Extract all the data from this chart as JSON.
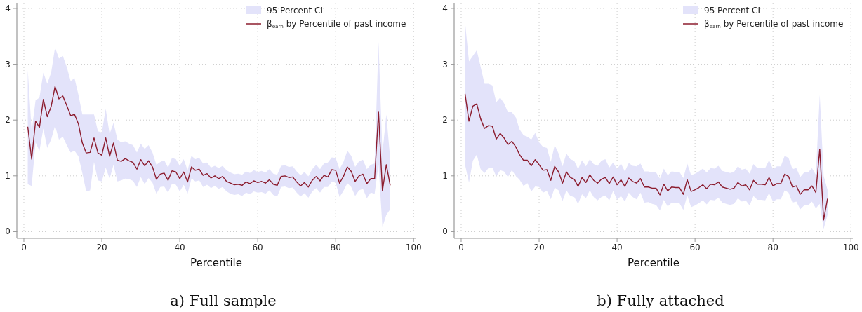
{
  "chart_data": [
    {
      "type": "line",
      "title": "a) Full sample",
      "xlabel": "Percentile",
      "annotations": [
        "95 Percent CI"
      ],
      "legend": "top right",
      "grid": true,
      "line_style": "solid",
      "xlim": [
        -1.8,
        100.5
      ],
      "ylim": [
        -0.12,
        4.1
      ],
      "xticks": [
        0,
        20,
        40,
        60,
        80,
        100
      ],
      "yticks": [
        0,
        1,
        2,
        3,
        4
      ],
      "x": [
        1,
        2,
        3,
        4,
        5,
        6,
        7,
        8,
        9,
        10,
        11,
        12,
        13,
        14,
        15,
        16,
        17,
        18,
        19,
        20,
        21,
        22,
        23,
        24,
        25,
        26,
        27,
        28,
        29,
        30,
        31,
        32,
        33,
        34,
        35,
        36,
        37,
        38,
        39,
        40,
        41,
        42,
        43,
        44,
        45,
        46,
        47,
        48,
        49,
        50,
        51,
        52,
        53,
        54,
        55,
        56,
        57,
        58,
        59,
        60,
        61,
        62,
        63,
        64,
        65,
        66,
        67,
        68,
        69,
        70,
        71,
        72,
        73,
        74,
        75,
        76,
        77,
        78,
        79,
        80,
        81,
        82,
        83,
        84,
        85,
        86,
        87,
        88,
        89,
        90,
        91,
        92,
        93,
        94
      ],
      "series": [
        {
          "name": "β$_{earn}$ by Percentile of past income",
          "color": "#8c1c2e",
          "values": [
            1.88,
            1.3,
            1.98,
            1.87,
            2.37,
            2.06,
            2.24,
            2.6,
            2.38,
            2.43,
            2.26,
            2.08,
            2.1,
            1.93,
            1.59,
            1.41,
            1.42,
            1.68,
            1.41,
            1.37,
            1.68,
            1.35,
            1.59,
            1.28,
            1.26,
            1.31,
            1.27,
            1.24,
            1.12,
            1.29,
            1.18,
            1.27,
            1.16,
            0.94,
            1.03,
            1.05,
            0.92,
            1.09,
            1.07,
            0.95,
            1.07,
            0.89,
            1.16,
            1.1,
            1.12,
            1.01,
            1.04,
            0.96,
            1.0,
            0.95,
            0.99,
            0.9,
            0.87,
            0.84,
            0.85,
            0.83,
            0.89,
            0.86,
            0.91,
            0.88,
            0.9,
            0.87,
            0.93,
            0.85,
            0.83,
            0.99,
            1.0,
            0.97,
            0.98,
            0.89,
            0.82,
            0.88,
            0.8,
            0.92,
            0.99,
            0.91,
            1.01,
            0.98,
            1.11,
            1.1,
            0.87,
            0.99,
            1.16,
            1.08,
            0.9,
            1.0,
            1.03,
            0.86,
            0.95,
            0.95,
            2.14,
            0.73,
            1.2,
            0.83
          ],
          "upper": [
            2.9,
            1.8,
            2.35,
            2.4,
            2.85,
            2.65,
            2.85,
            3.3,
            3.1,
            3.15,
            2.95,
            2.7,
            2.75,
            2.45,
            2.1,
            2.1,
            2.1,
            2.1,
            1.8,
            1.78,
            2.2,
            1.75,
            1.95,
            1.65,
            1.6,
            1.62,
            1.58,
            1.55,
            1.42,
            1.58,
            1.48,
            1.55,
            1.42,
            1.2,
            1.25,
            1.28,
            1.15,
            1.32,
            1.3,
            1.18,
            1.3,
            1.1,
            1.36,
            1.3,
            1.32,
            1.22,
            1.24,
            1.15,
            1.18,
            1.14,
            1.18,
            1.1,
            1.06,
            1.03,
            1.04,
            1.02,
            1.08,
            1.05,
            1.1,
            1.07,
            1.09,
            1.06,
            1.12,
            1.04,
            1.02,
            1.18,
            1.19,
            1.16,
            1.17,
            1.08,
            1.01,
            1.07,
            0.99,
            1.12,
            1.2,
            1.12,
            1.22,
            1.24,
            1.33,
            1.32,
            1.12,
            1.25,
            1.45,
            1.36,
            1.16,
            1.26,
            1.29,
            1.12,
            1.2,
            1.22,
            3.4,
            1.4,
            2.1,
            1.3
          ],
          "lower": [
            0.85,
            0.82,
            1.6,
            1.45,
            1.85,
            1.5,
            1.65,
            1.9,
            1.65,
            1.7,
            1.55,
            1.42,
            1.45,
            1.35,
            1.05,
            0.72,
            0.74,
            1.25,
            0.92,
            0.9,
            1.15,
            0.95,
            1.2,
            0.9,
            0.92,
            0.95,
            0.94,
            0.91,
            0.8,
            0.98,
            0.85,
            0.96,
            0.88,
            0.68,
            0.8,
            0.81,
            0.7,
            0.86,
            0.84,
            0.72,
            0.84,
            0.68,
            0.95,
            0.9,
            0.92,
            0.8,
            0.84,
            0.78,
            0.82,
            0.77,
            0.8,
            0.72,
            0.68,
            0.66,
            0.67,
            0.64,
            0.7,
            0.67,
            0.72,
            0.7,
            0.71,
            0.68,
            0.74,
            0.66,
            0.63,
            0.8,
            0.81,
            0.78,
            0.79,
            0.7,
            0.63,
            0.69,
            0.61,
            0.72,
            0.78,
            0.7,
            0.8,
            0.8,
            0.89,
            0.88,
            0.62,
            0.73,
            0.87,
            0.8,
            0.64,
            0.74,
            0.77,
            0.6,
            0.7,
            0.68,
            1.2,
            0.08,
            0.3,
            0.4
          ]
        }
      ]
    },
    {
      "type": "line",
      "title": "b) Fully attached",
      "xlabel": "Percentile",
      "annotations": [
        "95 Percent CI"
      ],
      "legend": "top right",
      "grid": true,
      "line_style": "solid",
      "xlim": [
        -1.8,
        100.5
      ],
      "ylim": [
        -0.12,
        4.1
      ],
      "xticks": [
        0,
        20,
        40,
        60,
        80,
        100
      ],
      "yticks": [
        0,
        1,
        2,
        3,
        4
      ],
      "x": [
        1,
        2,
        3,
        4,
        5,
        6,
        7,
        8,
        9,
        10,
        11,
        12,
        13,
        14,
        15,
        16,
        17,
        18,
        19,
        20,
        21,
        22,
        23,
        24,
        25,
        26,
        27,
        28,
        29,
        30,
        31,
        32,
        33,
        34,
        35,
        36,
        37,
        38,
        39,
        40,
        41,
        42,
        43,
        44,
        45,
        46,
        47,
        48,
        49,
        50,
        51,
        52,
        53,
        54,
        55,
        56,
        57,
        58,
        59,
        60,
        61,
        62,
        63,
        64,
        65,
        66,
        67,
        68,
        69,
        70,
        71,
        72,
        73,
        74,
        75,
        76,
        77,
        78,
        79,
        80,
        81,
        82,
        83,
        84,
        85,
        86,
        87,
        88,
        89,
        90,
        91,
        92,
        93,
        94
      ],
      "series": [
        {
          "name": "β$_{earn}$ by Percentile of past income",
          "color": "#8c1c2e",
          "values": [
            2.47,
            1.98,
            2.25,
            2.29,
            2.02,
            1.85,
            1.9,
            1.89,
            1.66,
            1.76,
            1.68,
            1.56,
            1.62,
            1.52,
            1.38,
            1.28,
            1.28,
            1.18,
            1.29,
            1.2,
            1.1,
            1.11,
            0.92,
            1.17,
            1.07,
            0.87,
            1.07,
            0.97,
            0.94,
            0.81,
            0.97,
            0.88,
            1.02,
            0.92,
            0.87,
            0.94,
            0.97,
            0.86,
            0.98,
            0.84,
            0.93,
            0.81,
            0.96,
            0.9,
            0.87,
            0.95,
            0.8,
            0.8,
            0.78,
            0.78,
            0.66,
            0.85,
            0.73,
            0.8,
            0.79,
            0.79,
            0.67,
            0.93,
            0.72,
            0.75,
            0.79,
            0.84,
            0.77,
            0.85,
            0.84,
            0.89,
            0.8,
            0.78,
            0.76,
            0.78,
            0.88,
            0.82,
            0.84,
            0.75,
            0.92,
            0.85,
            0.85,
            0.84,
            0.97,
            0.82,
            0.86,
            0.86,
            1.03,
            0.99,
            0.8,
            0.82,
            0.67,
            0.75,
            0.75,
            0.82,
            0.7,
            1.48,
            0.21,
            0.59
          ],
          "upper": [
            3.75,
            3.05,
            3.15,
            3.25,
            2.95,
            2.65,
            2.65,
            2.62,
            2.32,
            2.4,
            2.3,
            2.14,
            2.14,
            2.05,
            1.83,
            1.73,
            1.7,
            1.65,
            1.77,
            1.6,
            1.52,
            1.5,
            1.25,
            1.55,
            1.4,
            1.17,
            1.4,
            1.3,
            1.27,
            1.12,
            1.28,
            1.17,
            1.3,
            1.21,
            1.18,
            1.27,
            1.3,
            1.15,
            1.24,
            1.12,
            1.22,
            1.08,
            1.23,
            1.18,
            1.17,
            1.22,
            1.08,
            1.08,
            1.06,
            1.06,
            0.95,
            1.13,
            1.01,
            1.08,
            1.07,
            1.07,
            0.96,
            1.22,
            1.01,
            1.04,
            1.08,
            1.13,
            1.06,
            1.14,
            1.13,
            1.18,
            1.09,
            1.07,
            1.05,
            1.07,
            1.17,
            1.11,
            1.13,
            1.04,
            1.21,
            1.14,
            1.15,
            1.14,
            1.28,
            1.12,
            1.17,
            1.17,
            1.36,
            1.32,
            1.12,
            1.14,
            0.98,
            1.06,
            1.06,
            1.14,
            1.02,
            2.45,
            1.0,
            0.75
          ],
          "lower": [
            1.2,
            0.88,
            1.27,
            1.38,
            1.12,
            1.05,
            1.14,
            1.15,
            0.99,
            1.1,
            1.08,
            0.98,
            1.1,
            1.0,
            0.93,
            0.82,
            0.87,
            0.72,
            0.81,
            0.8,
            0.7,
            0.73,
            0.58,
            0.79,
            0.74,
            0.55,
            0.74,
            0.64,
            0.62,
            0.5,
            0.67,
            0.6,
            0.74,
            0.62,
            0.56,
            0.62,
            0.65,
            0.56,
            0.73,
            0.57,
            0.64,
            0.54,
            0.7,
            0.62,
            0.58,
            0.7,
            0.52,
            0.53,
            0.5,
            0.48,
            0.38,
            0.57,
            0.45,
            0.52,
            0.51,
            0.51,
            0.39,
            0.65,
            0.44,
            0.47,
            0.51,
            0.56,
            0.49,
            0.57,
            0.56,
            0.61,
            0.52,
            0.5,
            0.48,
            0.5,
            0.6,
            0.54,
            0.56,
            0.47,
            0.64,
            0.57,
            0.57,
            0.56,
            0.69,
            0.54,
            0.58,
            0.58,
            0.74,
            0.7,
            0.52,
            0.54,
            0.4,
            0.47,
            0.47,
            0.54,
            0.42,
            0.5,
            0.05,
            0.3
          ]
        }
      ]
    }
  ]
}
